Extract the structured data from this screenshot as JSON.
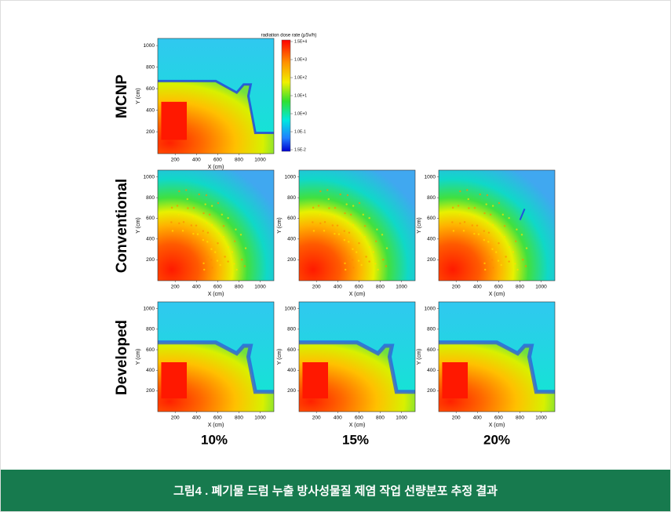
{
  "figure": {
    "colorbar_title": "radiation dose rate (μSv/h)",
    "colorbar_labels": [
      "1.5E+4",
      "1.0E+3",
      "1.0E+2",
      "1.0E+1",
      "1.0E+0",
      "1.0E-1",
      "1.5E-2"
    ],
    "x_axis_label": "X (cm)",
    "y_axis_label": "Y (cm)",
    "x_ticks": [
      "200",
      "400",
      "600",
      "800",
      "1000"
    ],
    "y_ticks": [
      "200",
      "400",
      "600",
      "800",
      "1000"
    ],
    "rows": [
      "MCNP",
      "Conventional",
      "Developed"
    ],
    "columns": [
      "10%",
      "15%",
      "20%"
    ]
  },
  "caption": "그림4 . 폐기물 드럼 누출 방사성물질 제염 작업 선량분포 추정 결과"
}
